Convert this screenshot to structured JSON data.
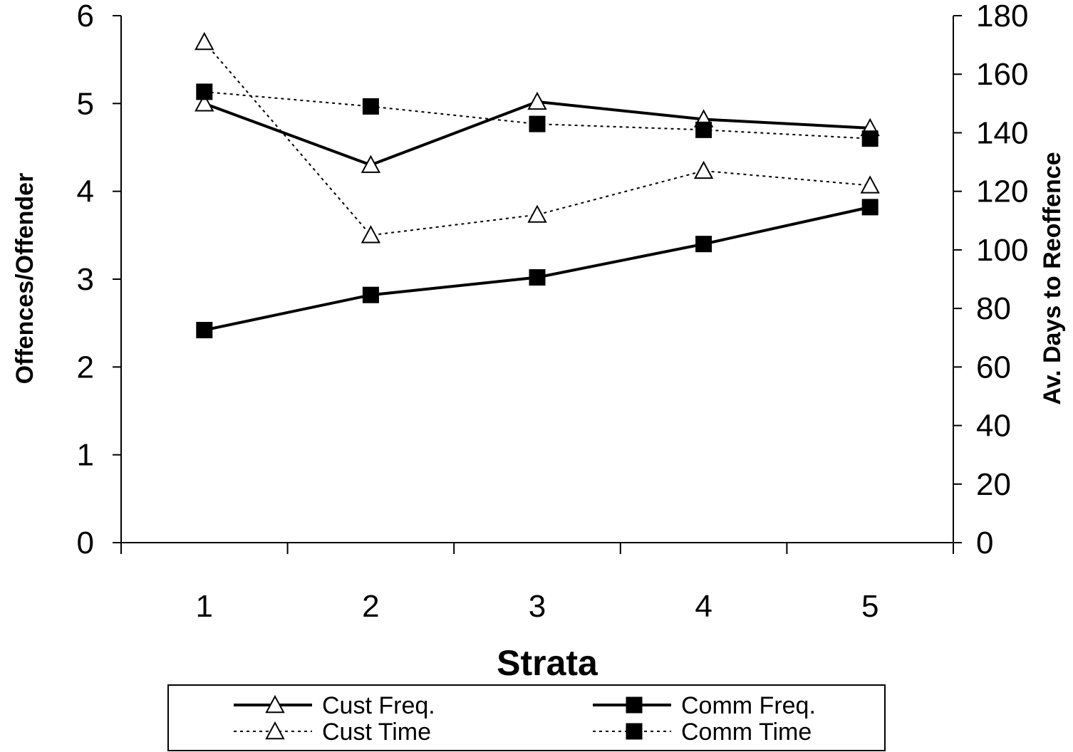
{
  "chart_data": {
    "type": "line",
    "xlabel": "Strata",
    "ylabel": "Offences/Offender",
    "y2label": "Av. Days to Reoffence",
    "categories": [
      "1",
      "2",
      "3",
      "4",
      "5"
    ],
    "ylim": [
      0,
      6
    ],
    "y2lim": [
      0,
      180
    ],
    "yticks": [
      "0",
      "1",
      "2",
      "3",
      "4",
      "5",
      "6"
    ],
    "y2ticks": [
      "0",
      "20",
      "40",
      "60",
      "80",
      "100",
      "120",
      "140",
      "160",
      "180"
    ],
    "series": [
      {
        "name": "Cust Freq.",
        "axis": "left",
        "marker": "triangle-open",
        "line": "solid",
        "values": [
          5.0,
          4.3,
          5.02,
          4.82,
          4.72
        ]
      },
      {
        "name": "Comm Freq.",
        "axis": "left",
        "marker": "square-filled",
        "line": "solid",
        "values": [
          2.42,
          2.82,
          3.02,
          3.4,
          3.82
        ]
      },
      {
        "name": "Cust Time",
        "axis": "right",
        "marker": "triangle-open",
        "line": "dotted",
        "values": [
          171,
          105,
          112,
          127,
          122
        ]
      },
      {
        "name": "Comm Time",
        "axis": "right",
        "marker": "square-filled",
        "line": "dotted",
        "values": [
          154,
          149,
          143,
          141,
          138
        ]
      }
    ],
    "legend_position": "bottom",
    "grid": false
  }
}
